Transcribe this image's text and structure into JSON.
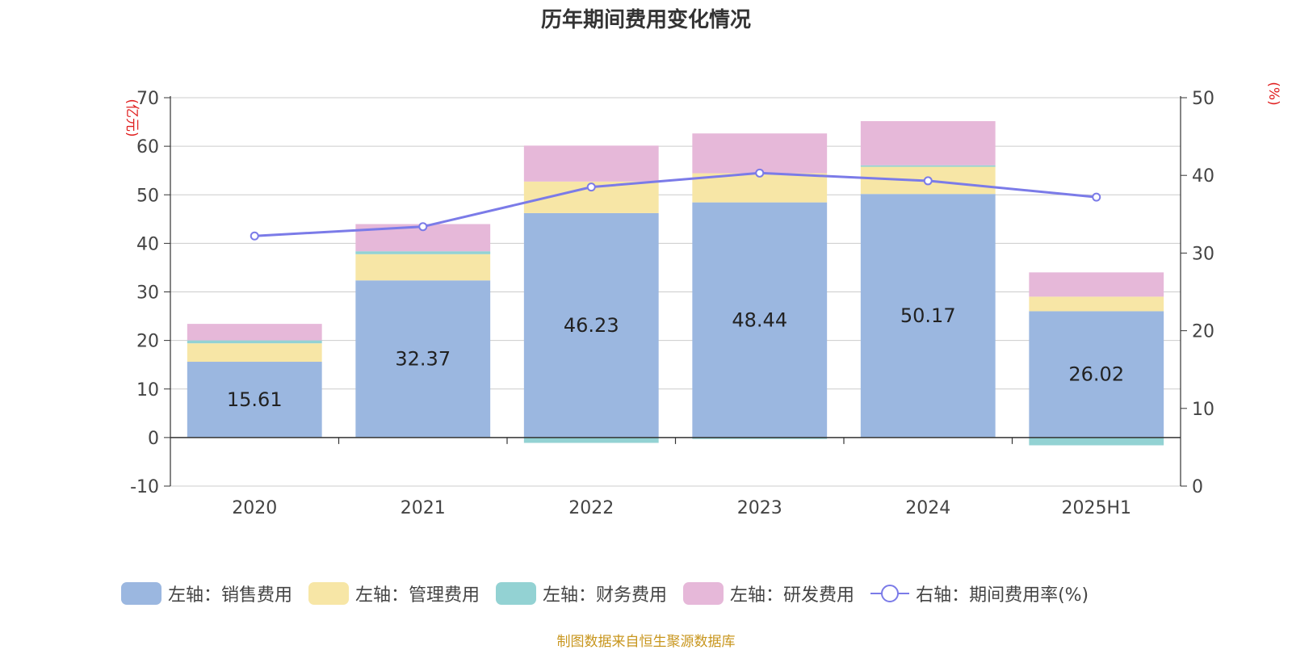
{
  "title": "历年期间费用变化情况",
  "footer": "制图数据来自恒生聚源数据库",
  "chart_data": {
    "type": "bar",
    "categories": [
      "2020",
      "2021",
      "2022",
      "2023",
      "2024",
      "2025H1"
    ],
    "left_axis": {
      "unit": "(亿元)",
      "range": [
        -10,
        70
      ],
      "ticks": [
        "70",
        "60",
        "50",
        "40",
        "30",
        "20",
        "10",
        "0",
        "-10"
      ]
    },
    "right_axis": {
      "unit": "(%)",
      "range": [
        0,
        50
      ],
      "ticks": [
        "50",
        "40",
        "30",
        "20",
        "10",
        "0"
      ]
    },
    "series": [
      {
        "name": "左轴：销售费用",
        "type": "bar",
        "axis": "left",
        "color": "#9bb7e0",
        "values": [
          15.61,
          32.37,
          46.23,
          48.44,
          50.17,
          26.02
        ],
        "labels": [
          "15.61",
          "32.37",
          "46.23",
          "48.44",
          "50.17",
          "26.02"
        ]
      },
      {
        "name": "左轴：管理费用",
        "type": "bar",
        "axis": "left",
        "color": "#f7e6a6",
        "values": [
          3.8,
          5.4,
          6.5,
          6.0,
          5.6,
          3.0
        ]
      },
      {
        "name": "左轴：财务费用",
        "type": "bar",
        "axis": "left",
        "color": "#93d2d3",
        "values": [
          0.6,
          0.6,
          -1.1,
          -0.3,
          0.3,
          -1.6
        ]
      },
      {
        "name": "左轴：研发费用",
        "type": "bar",
        "axis": "left",
        "color": "#e6b8d9",
        "values": [
          3.4,
          5.6,
          7.4,
          8.2,
          9.1,
          5.0
        ]
      },
      {
        "name": "右轴：期间费用率(%)",
        "type": "line",
        "axis": "right",
        "color": "#7b7be8",
        "values": [
          32.2,
          33.4,
          38.5,
          40.3,
          39.3,
          37.2
        ]
      }
    ],
    "grid": true,
    "legend_position": "bottom"
  }
}
